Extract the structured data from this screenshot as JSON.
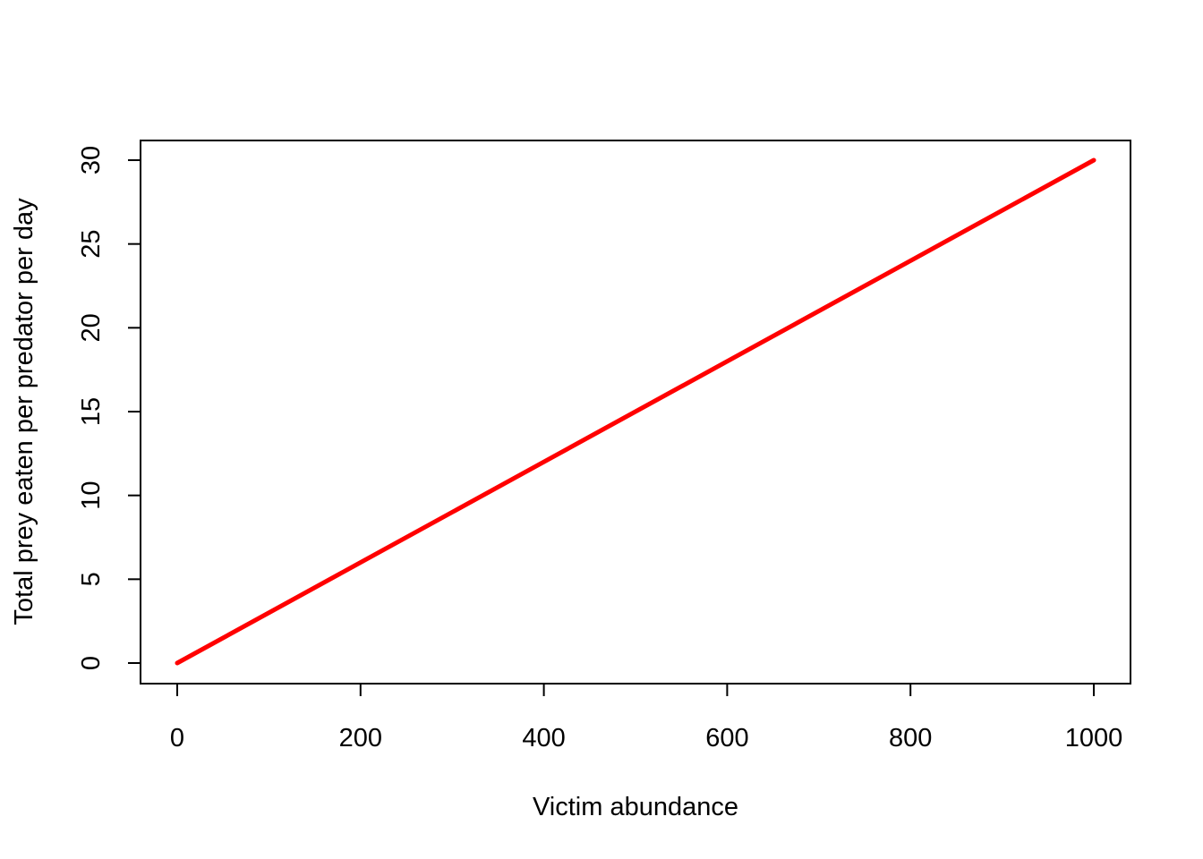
{
  "chart_data": {
    "type": "line",
    "title": "",
    "xlabel": "Victim abundance",
    "ylabel": "Total prey eaten per predator per day",
    "xlim": [
      0,
      1000
    ],
    "ylim": [
      0,
      30
    ],
    "x_ticks": [
      0,
      200,
      400,
      600,
      800,
      1000
    ],
    "y_ticks": [
      0,
      5,
      10,
      15,
      20,
      25,
      30
    ],
    "grid": false,
    "legend": "none",
    "series": [
      {
        "color": "#ff0000",
        "x": [
          0,
          200,
          400,
          600,
          800,
          1000
        ],
        "y": [
          0,
          6,
          12,
          18,
          24,
          30
        ]
      }
    ]
  }
}
